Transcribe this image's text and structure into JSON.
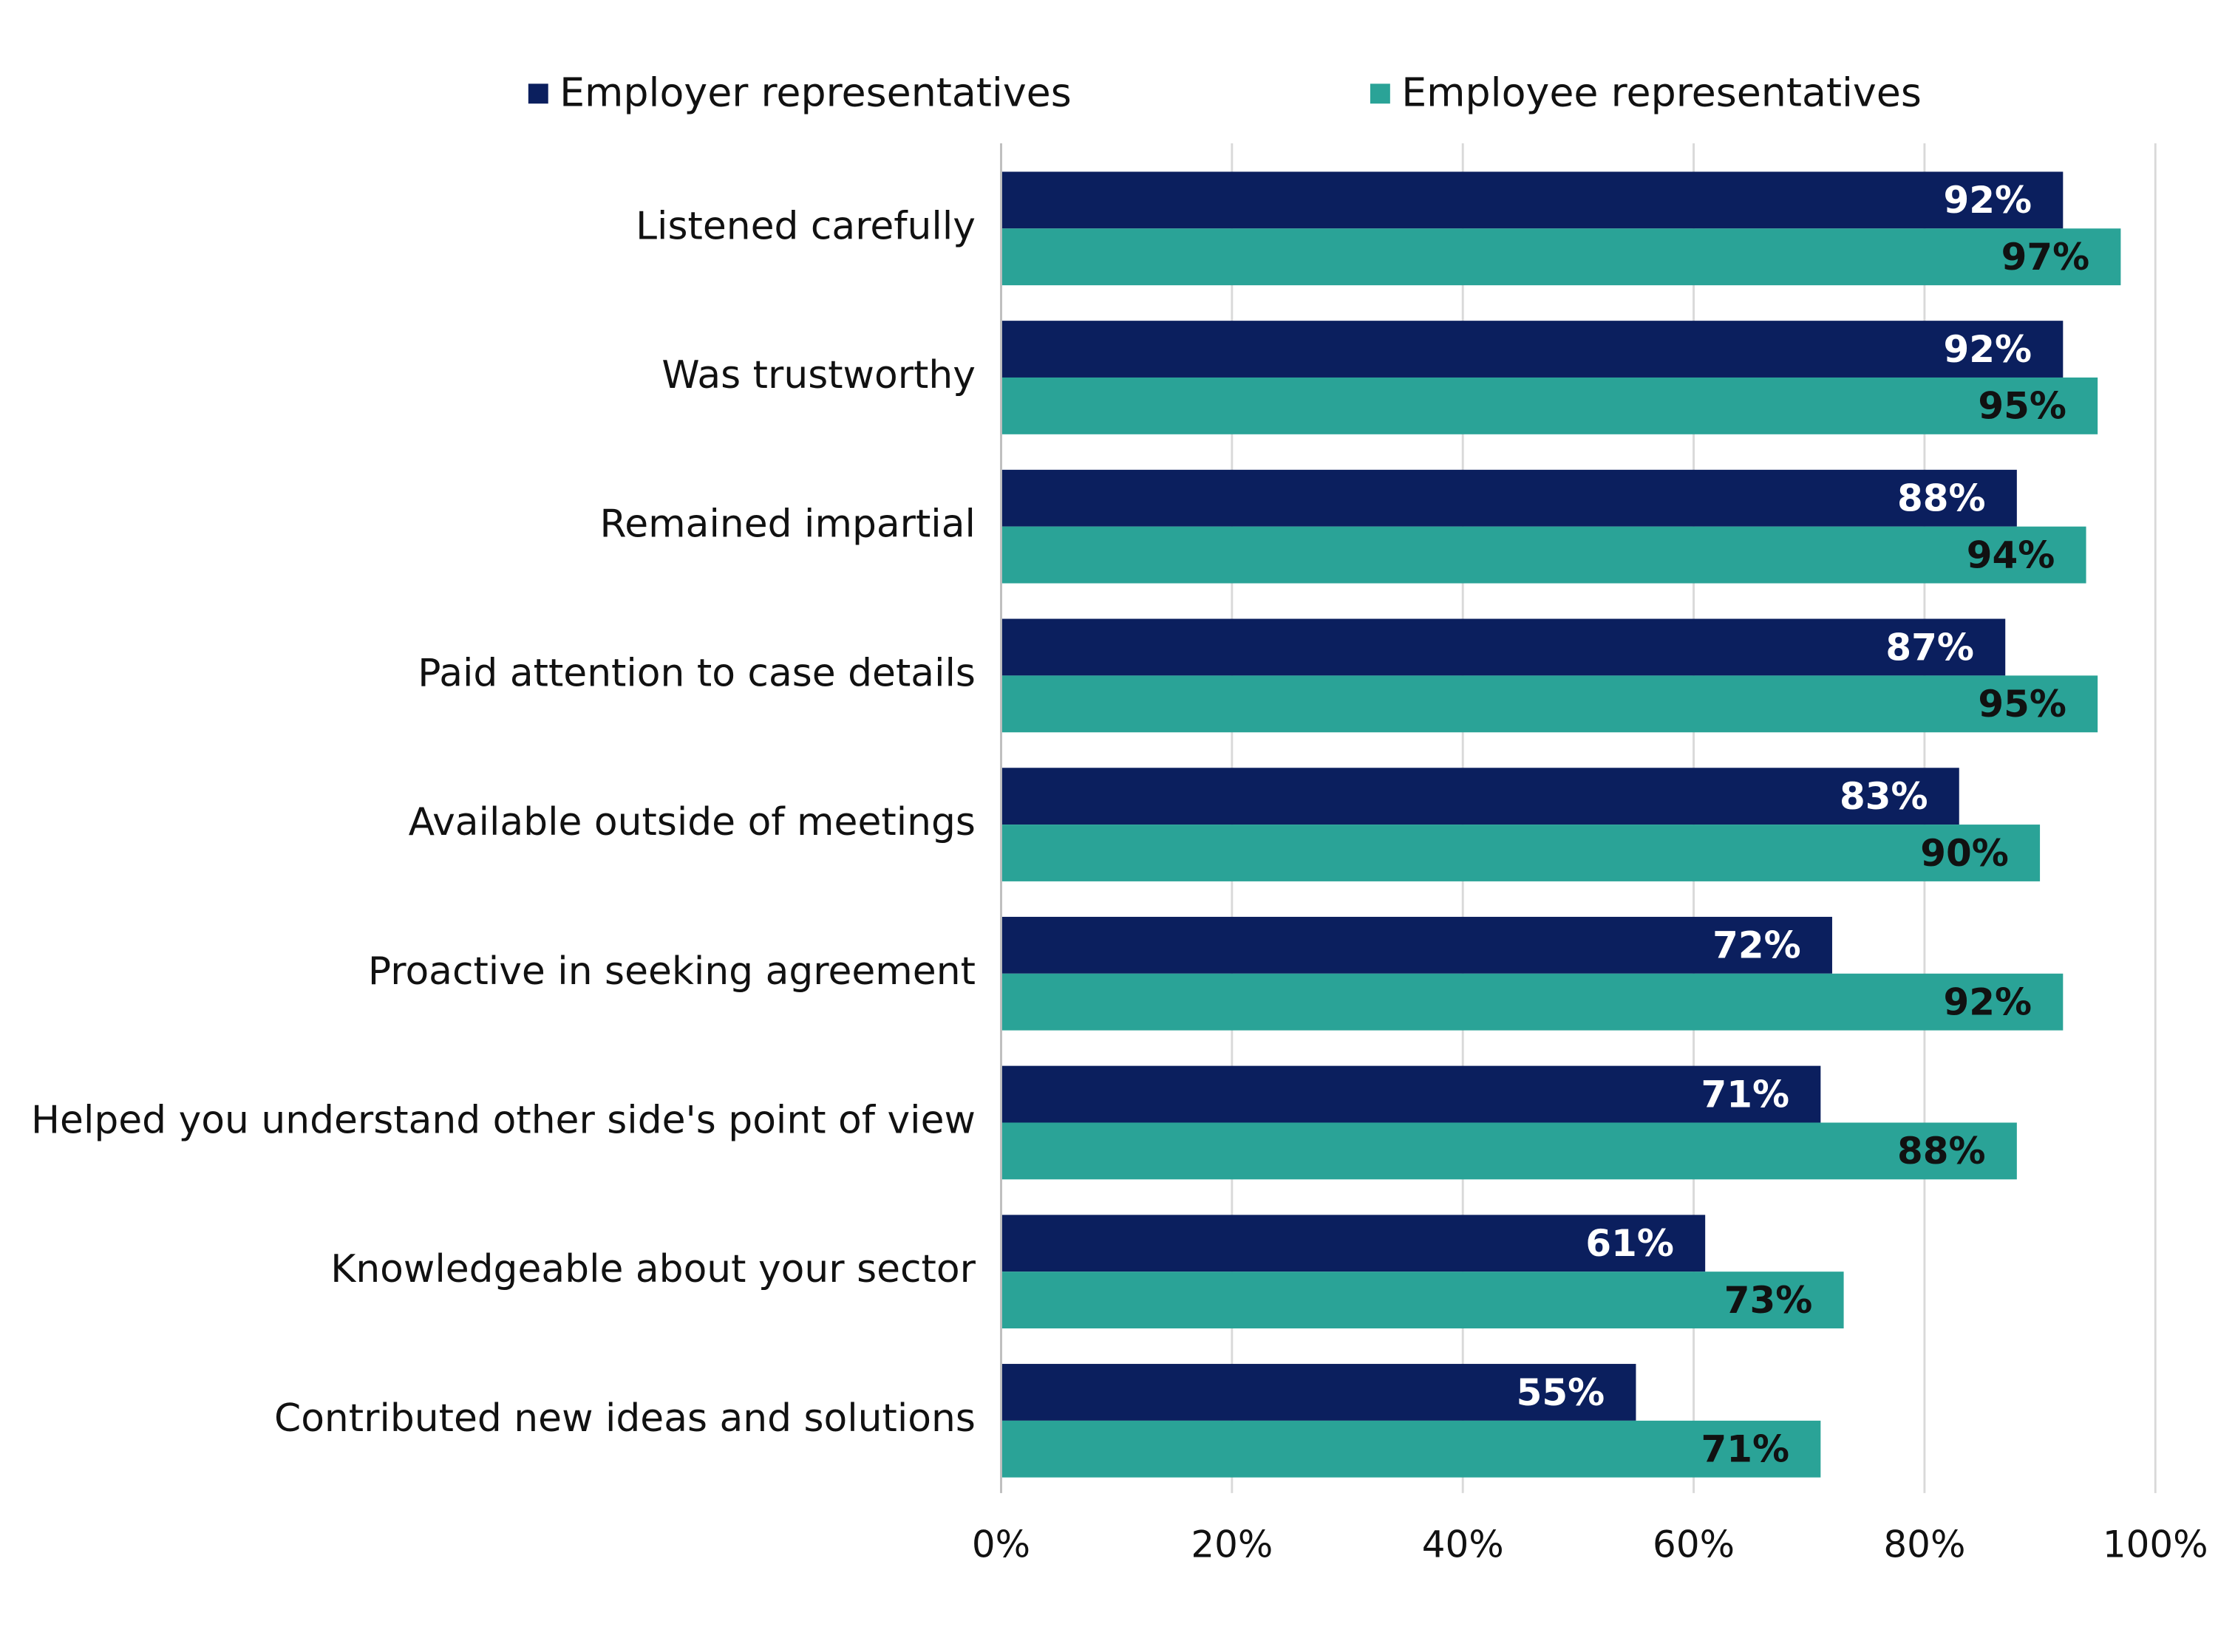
{
  "chart_data": {
    "type": "hbar",
    "categories": [
      "Listened carefully",
      "Was trustworthy",
      "Remained impartial",
      "Paid attention to case details",
      "Available outside of meetings",
      "Proactive in seeking agreement",
      "Helped you understand other side's point of view",
      "Knowledgeable about your sector",
      "Contributed new ideas and solutions"
    ],
    "series": [
      {
        "name": "Employer representatives",
        "color": "#0b1f5e",
        "values": [
          92,
          92,
          88,
          87,
          83,
          72,
          71,
          61,
          55
        ],
        "value_labels": [
          "92%",
          "92%",
          "88%",
          "87%",
          "83%",
          "72%",
          "71%",
          "61%",
          "55%"
        ]
      },
      {
        "name": "Employee representatives",
        "color": "#2aa397",
        "values": [
          97,
          95,
          94,
          95,
          90,
          92,
          88,
          73,
          71
        ],
        "value_labels": [
          "97%",
          "95%",
          "94%",
          "95%",
          "90%",
          "92%",
          "88%",
          "73%",
          "71%"
        ]
      }
    ],
    "xlim": [
      0,
      100
    ],
    "xticks": [
      {
        "value": 0,
        "label": "0%"
      },
      {
        "value": 20,
        "label": "20%"
      },
      {
        "value": 40,
        "label": "40%"
      },
      {
        "value": 60,
        "label": "60%"
      },
      {
        "value": 80,
        "label": "80%"
      },
      {
        "value": 100,
        "label": "100%"
      }
    ],
    "grid": true,
    "legend": "top"
  }
}
